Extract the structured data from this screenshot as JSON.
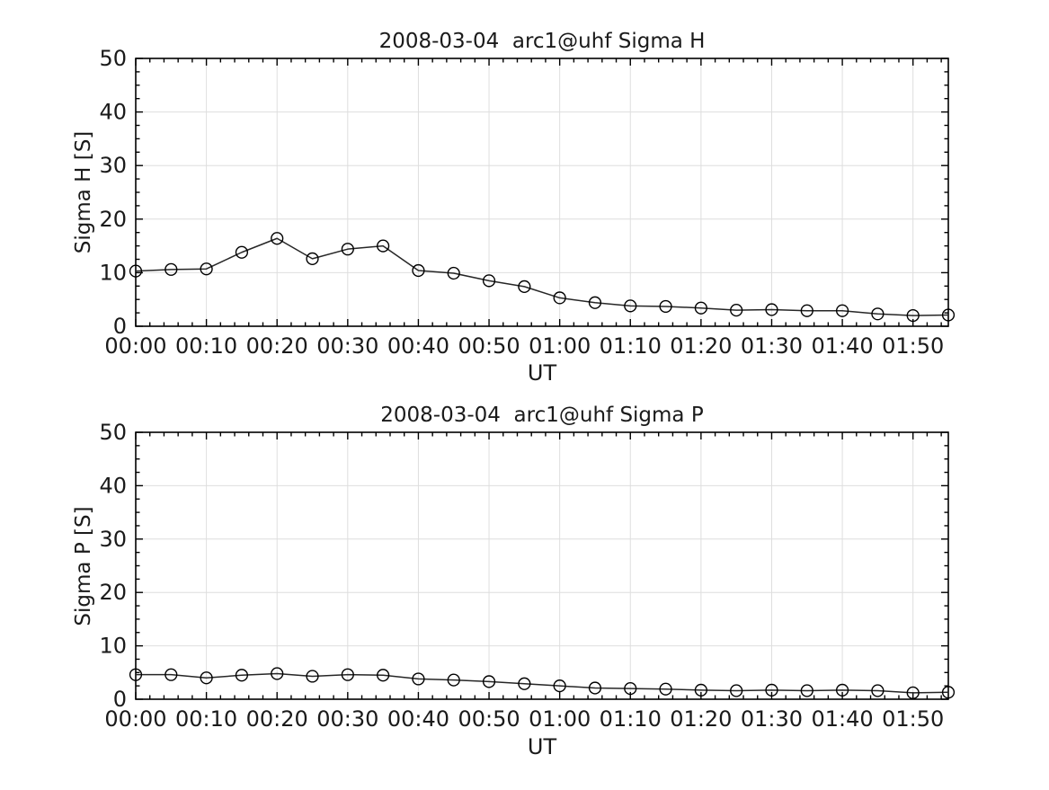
{
  "figure": {
    "background": "#ffffff",
    "axis_color": "#000000",
    "grid_color": "#dedede",
    "line_color": "#262626",
    "marker_color": "#000000",
    "marker_style": "open-circle",
    "tick_direction": "in"
  },
  "chart_data": [
    {
      "type": "line",
      "title": "2008-03-04  arc1@uhf Sigma H",
      "xlabel": "UT",
      "ylabel": "Sigma H [S]",
      "ylim": [
        0,
        50
      ],
      "yticks": [
        0,
        10,
        20,
        30,
        40,
        50
      ],
      "y_minor_step": 2.5,
      "xlim_minutes": [
        0,
        115
      ],
      "x_minor_step_minutes": 2,
      "grid": true,
      "legend": "none",
      "x": [
        "00:00",
        "00:05",
        "00:10",
        "00:15",
        "00:20",
        "00:25",
        "00:30",
        "00:35",
        "00:40",
        "00:45",
        "00:50",
        "00:55",
        "01:00",
        "01:05",
        "01:10",
        "01:15",
        "01:20",
        "01:25",
        "01:30",
        "01:35",
        "01:40",
        "01:45",
        "01:50",
        "01:55"
      ],
      "xtick_labels": [
        "00:00",
        "00:10",
        "00:20",
        "00:30",
        "00:40",
        "00:50",
        "01:00",
        "01:10",
        "01:20",
        "01:30",
        "01:40",
        "01:50"
      ],
      "values": [
        10.3,
        10.6,
        10.7,
        13.8,
        16.4,
        12.6,
        14.4,
        15.0,
        10.4,
        9.9,
        8.5,
        7.4,
        5.3,
        4.4,
        3.8,
        3.7,
        3.4,
        3.0,
        3.1,
        2.9,
        2.9,
        2.3,
        2.0,
        2.1
      ]
    },
    {
      "type": "line",
      "title": "2008-03-04  arc1@uhf Sigma P",
      "xlabel": "UT",
      "ylabel": "Sigma P [S]",
      "ylim": [
        0,
        50
      ],
      "yticks": [
        0,
        10,
        20,
        30,
        40,
        50
      ],
      "y_minor_step": 2.5,
      "xlim_minutes": [
        0,
        115
      ],
      "x_minor_step_minutes": 2,
      "grid": true,
      "legend": "none",
      "x": [
        "00:00",
        "00:05",
        "00:10",
        "00:15",
        "00:20",
        "00:25",
        "00:30",
        "00:35",
        "00:40",
        "00:45",
        "00:50",
        "00:55",
        "01:00",
        "01:05",
        "01:10",
        "01:15",
        "01:20",
        "01:25",
        "01:30",
        "01:35",
        "01:40",
        "01:45",
        "01:50",
        "01:55"
      ],
      "xtick_labels": [
        "00:00",
        "00:10",
        "00:20",
        "00:30",
        "00:40",
        "00:50",
        "01:00",
        "01:10",
        "01:20",
        "01:30",
        "01:40",
        "01:50"
      ],
      "values": [
        4.6,
        4.6,
        4.0,
        4.5,
        4.8,
        4.3,
        4.6,
        4.5,
        3.8,
        3.6,
        3.3,
        2.9,
        2.5,
        2.1,
        2.0,
        1.9,
        1.7,
        1.6,
        1.7,
        1.6,
        1.7,
        1.6,
        1.2,
        1.3
      ]
    }
  ]
}
